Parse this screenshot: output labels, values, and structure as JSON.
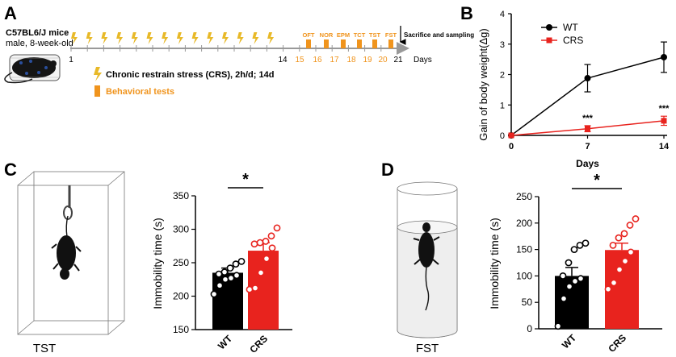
{
  "colors": {
    "wt": "#000000",
    "crs": "#e8231e",
    "timeline": "#f0941d",
    "bolt": "#e8b928",
    "grey": "#888888"
  },
  "panel_a": {
    "label": "A",
    "mouse_title": "C57BL6/J mice",
    "mouse_subtitle": "male, 8-week-old",
    "days": [
      "1",
      "14",
      "15",
      "16",
      "17",
      "18",
      "19",
      "20",
      "21"
    ],
    "test_labels": [
      "OFT",
      "NOR",
      "EPM",
      "TCT",
      "TST",
      "FST"
    ],
    "days_label": "Days",
    "sacrifice_label": "Sacrifice and sampling",
    "legend_crs": "Chronic restrain stress (CRS), 2h/d; 14d",
    "legend_tests": "Behavioral tests"
  },
  "panel_c": {
    "label": "C",
    "apparatus_label": "TST"
  },
  "panel_d": {
    "label": "D",
    "apparatus_label": "FST"
  },
  "chart_data": [
    {
      "id": "B",
      "panel_label": "B",
      "type": "line",
      "x": [
        0,
        7,
        14
      ],
      "xticks": [
        "0",
        "7",
        "14"
      ],
      "xlabel": "Days",
      "ylabel": "Gain of body weight(Δg)",
      "xlim": [
        0,
        14
      ],
      "ylim": [
        0,
        4
      ],
      "yticks": [
        "0",
        "1",
        "2",
        "3",
        "4"
      ],
      "series": [
        {
          "name": "WT",
          "values": [
            0,
            1.88,
            2.57
          ],
          "err": [
            0,
            0.45,
            0.5
          ]
        },
        {
          "name": "CRS",
          "values": [
            0,
            0.22,
            0.48
          ],
          "err": [
            0,
            0.1,
            0.15
          ]
        }
      ],
      "annotations": [
        "***",
        "***"
      ],
      "legend": "top-left"
    },
    {
      "id": "C",
      "type": "bar",
      "categories": [
        "WT",
        "CRS"
      ],
      "values": [
        235,
        268
      ],
      "err": [
        7,
        12
      ],
      "points": [
        [
          203,
          216,
          225,
          227,
          231,
          233,
          236,
          242,
          248,
          252
        ],
        [
          210,
          212,
          235,
          256,
          272,
          278,
          280,
          282,
          290,
          302
        ]
      ],
      "ylabel": "Immobility time (s)",
      "ylim": [
        150,
        350
      ],
      "yticks": [
        "150",
        "200",
        "250",
        "300",
        "350"
      ],
      "significance": "*"
    },
    {
      "id": "D",
      "type": "bar",
      "categories": [
        "WT",
        "CRS"
      ],
      "values": [
        100,
        149
      ],
      "err": [
        16,
        13
      ],
      "points": [
        [
          5,
          57,
          80,
          90,
          95,
          100,
          125,
          150,
          158,
          162
        ],
        [
          75,
          87,
          112,
          128,
          145,
          158,
          172,
          180,
          196,
          208
        ]
      ],
      "ylabel": "Immobility time (s)",
      "ylim": [
        0,
        250
      ],
      "yticks": [
        "0",
        "50",
        "100",
        "150",
        "200",
        "250"
      ],
      "significance": "*"
    }
  ]
}
